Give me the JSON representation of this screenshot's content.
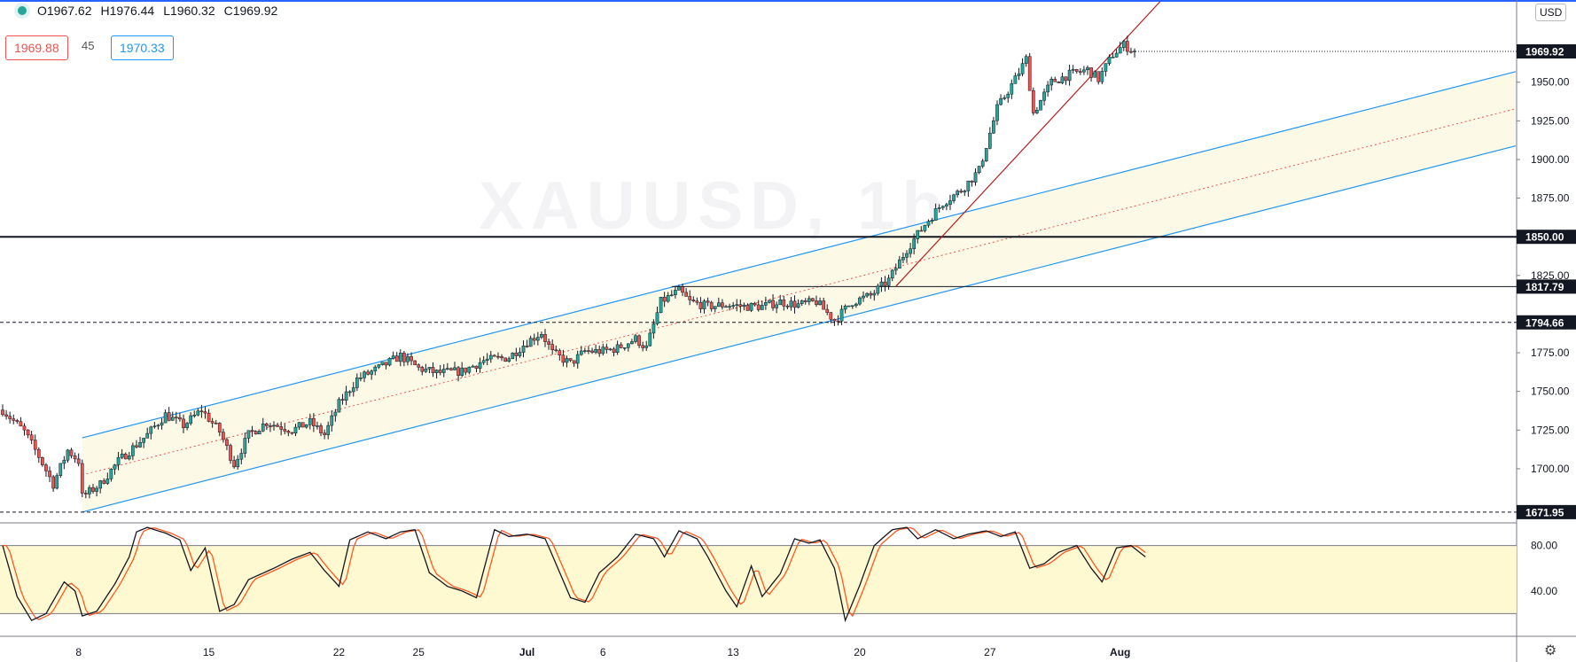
{
  "header": {
    "open": "O1967.62",
    "high": "H1976.44",
    "low": "L1960.32",
    "close": "C1969.92"
  },
  "quote": {
    "bid": "1969.88",
    "spread": "45",
    "ask": "1970.33"
  },
  "currency": "USD",
  "colors": {
    "up": "#26a69a",
    "down": "#ef5350",
    "channel": "#2196f3",
    "channel_fill": "#fdf8e1",
    "trend": "#b71c1c",
    "stoch_k": "#131722",
    "stoch_d": "#ff5722"
  },
  "chart_data": [
    {
      "type": "candlestick",
      "symbol": "XAUUSD",
      "ylim": [
        1665,
        2002
      ],
      "yticks": [
        1700,
        1725,
        1750,
        1775,
        1800,
        1825,
        1850,
        1875,
        1900,
        1925,
        1950,
        1975
      ],
      "x_range": [
        0,
        313
      ],
      "xticks": [
        {
          "i": 21,
          "label": "8"
        },
        {
          "i": 57,
          "label": "15"
        },
        {
          "i": 93,
          "label": "22"
        },
        {
          "i": 115,
          "label": "25"
        },
        {
          "i": 145,
          "label": "Jul"
        },
        {
          "i": 166,
          "label": "6"
        },
        {
          "i": 202,
          "label": "13"
        },
        {
          "i": 237,
          "label": "20"
        },
        {
          "i": 273,
          "label": "27"
        },
        {
          "i": 309,
          "label": "Aug"
        }
      ],
      "anchors": [
        [
          0,
          1738
        ],
        [
          6,
          1724
        ],
        [
          10,
          1708
        ],
        [
          14,
          1690
        ],
        [
          18,
          1712
        ],
        [
          21,
          1705
        ],
        [
          22,
          1682
        ],
        [
          27,
          1690
        ],
        [
          32,
          1705
        ],
        [
          40,
          1722
        ],
        [
          45,
          1735
        ],
        [
          50,
          1728
        ],
        [
          55,
          1738
        ],
        [
          60,
          1724
        ],
        [
          64,
          1703
        ],
        [
          68,
          1722
        ],
        [
          73,
          1730
        ],
        [
          80,
          1725
        ],
        [
          85,
          1730
        ],
        [
          89,
          1722
        ],
        [
          93,
          1742
        ],
        [
          98,
          1758
        ],
        [
          104,
          1765
        ],
        [
          110,
          1773
        ],
        [
          115,
          1765
        ],
        [
          120,
          1762
        ],
        [
          127,
          1763
        ],
        [
          133,
          1770
        ],
        [
          140,
          1772
        ],
        [
          145,
          1782
        ],
        [
          149,
          1788
        ],
        [
          152,
          1775
        ],
        [
          157,
          1768
        ],
        [
          161,
          1776
        ],
        [
          166,
          1776
        ],
        [
          170,
          1778
        ],
        [
          175,
          1784
        ],
        [
          178,
          1778
        ],
        [
          182,
          1808
        ],
        [
          187,
          1815
        ],
        [
          190,
          1808
        ],
        [
          195,
          1805
        ],
        [
          200,
          1806
        ],
        [
          205,
          1805
        ],
        [
          210,
          1805
        ],
        [
          215,
          1808
        ],
        [
          220,
          1806
        ],
        [
          225,
          1808
        ],
        [
          230,
          1796
        ],
        [
          235,
          1808
        ],
        [
          240,
          1812
        ],
        [
          245,
          1822
        ],
        [
          250,
          1842
        ],
        [
          255,
          1858
        ],
        [
          260,
          1872
        ],
        [
          265,
          1880
        ],
        [
          270,
          1893
        ],
        [
          275,
          1933
        ],
        [
          280,
          1952
        ],
        [
          283,
          1965
        ],
        [
          285,
          1930
        ],
        [
          290,
          1950
        ],
        [
          295,
          1955
        ],
        [
          300,
          1958
        ],
        [
          303,
          1952
        ],
        [
          307,
          1968
        ],
        [
          310,
          1974
        ],
        [
          313,
          1970
        ]
      ],
      "horizontal_lines": [
        {
          "price": 1850.0,
          "label": "1850.00",
          "style": "solid"
        },
        {
          "price": 1817.79,
          "label": "1817.79",
          "style": "solid"
        },
        {
          "price": 1794.66,
          "label": "1794.66",
          "style": "dashed"
        },
        {
          "price": 1671.95,
          "label": "1671.95",
          "style": "dashed"
        }
      ],
      "last_price": {
        "price": 1969.92,
        "label": "1969.92"
      },
      "channel": {
        "start_i": 22,
        "end_i": 340,
        "upper": [
          1720,
          1910
        ],
        "lower": [
          1672,
          1862
        ]
      },
      "trendline": {
        "from": [
          247,
          1818
        ],
        "to": [
          320,
          2002
        ]
      },
      "resistance_segment": {
        "from_i": 185,
        "to_i": 340,
        "price": 1817.79
      }
    },
    {
      "type": "line",
      "indicator": "Stochastic",
      "ylim": [
        0,
        100
      ],
      "yticks": [
        40,
        80
      ],
      "band": [
        20,
        80
      ],
      "series": [
        {
          "values_anchors": [
            [
              0,
              80
            ],
            [
              4,
              35
            ],
            [
              8,
              14
            ],
            [
              12,
              20
            ],
            [
              17,
              48
            ],
            [
              20,
              40
            ],
            [
              22,
              18
            ],
            [
              26,
              22
            ],
            [
              31,
              46
            ],
            [
              35,
              70
            ],
            [
              37,
              92
            ],
            [
              40,
              96
            ],
            [
              45,
              91
            ],
            [
              49,
              85
            ],
            [
              52,
              58
            ],
            [
              56,
              78
            ],
            [
              60,
              22
            ],
            [
              64,
              28
            ],
            [
              68,
              50
            ],
            [
              75,
              60
            ],
            [
              80,
              68
            ],
            [
              85,
              74
            ],
            [
              89,
              58
            ],
            [
              93,
              44
            ],
            [
              96,
              85
            ],
            [
              101,
              92
            ],
            [
              106,
              86
            ],
            [
              110,
              92
            ],
            [
              114,
              94
            ],
            [
              118,
              56
            ],
            [
              123,
              44
            ],
            [
              127,
              40
            ],
            [
              131,
              34
            ],
            [
              136,
              94
            ],
            [
              140,
              88
            ],
            [
              145,
              90
            ],
            [
              150,
              86
            ],
            [
              153,
              64
            ],
            [
              157,
              34
            ],
            [
              161,
              30
            ],
            [
              165,
              56
            ],
            [
              170,
              70
            ],
            [
              175,
              90
            ],
            [
              180,
              86
            ],
            [
              183,
              70
            ],
            [
              187,
              93
            ],
            [
              192,
              86
            ],
            [
              195,
              70
            ],
            [
              200,
              40
            ],
            [
              203,
              26
            ],
            [
              207,
              62
            ],
            [
              210,
              35
            ],
            [
              215,
              55
            ],
            [
              219,
              86
            ],
            [
              223,
              82
            ],
            [
              226,
              85
            ],
            [
              230,
              60
            ],
            [
              233,
              14
            ],
            [
              237,
              45
            ],
            [
              241,
              80
            ],
            [
              246,
              94
            ],
            [
              250,
              96
            ],
            [
              253,
              86
            ],
            [
              258,
              94
            ],
            [
              263,
              86
            ],
            [
              267,
              90
            ],
            [
              272,
              93
            ],
            [
              276,
              88
            ],
            [
              280,
              92
            ],
            [
              284,
              60
            ],
            [
              288,
              64
            ],
            [
              292,
              74
            ],
            [
              297,
              80
            ],
            [
              301,
              60
            ],
            [
              304,
              48
            ],
            [
              308,
              78
            ],
            [
              312,
              80
            ],
            [
              316,
              70
            ]
          ]
        }
      ]
    }
  ]
}
